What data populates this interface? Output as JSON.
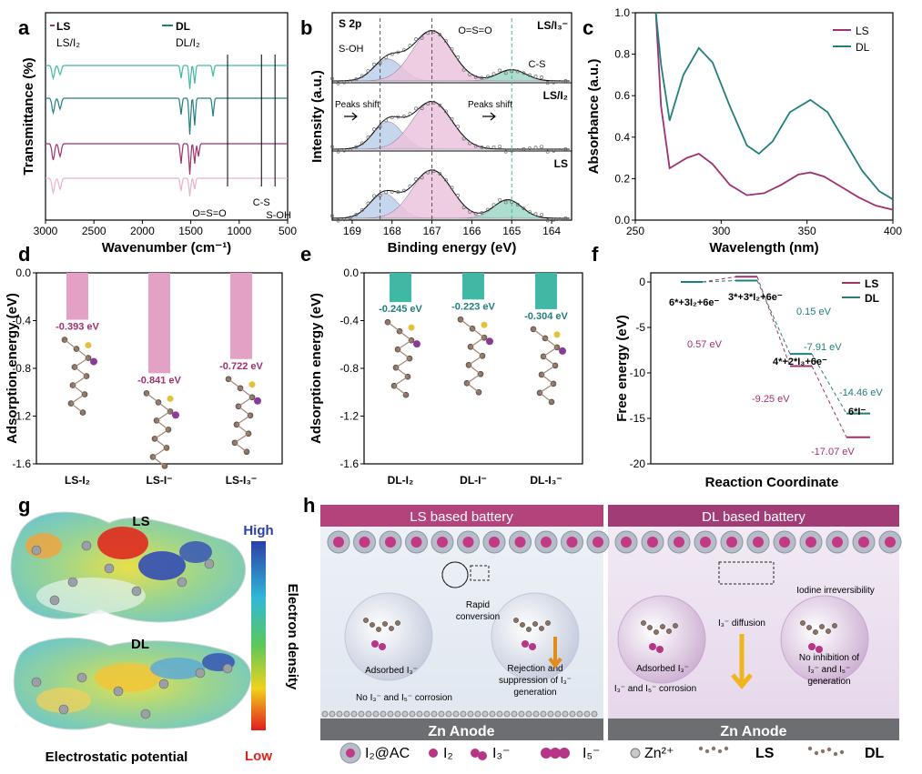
{
  "colors": {
    "ls": "#a0306e",
    "dl": "#217f7b",
    "ls_light": "#e8b2d0",
    "dl_light": "#3fb8a4",
    "pink_fill": "#ecc4dc",
    "blue_fill": "#bcd0ea",
    "green_fill": "#9fd8c6",
    "banner_ls": "#b4437c",
    "banner_dl": "#a23c77"
  },
  "panel_letters": [
    "a",
    "b",
    "c",
    "d",
    "e",
    "f",
    "g",
    "h"
  ],
  "chart_data": [
    {
      "panel": "a",
      "type": "line",
      "xlabel": "Wavenumber (cm⁻¹)",
      "ylabel": "Transmittance (%)",
      "xlim": [
        3000,
        500
      ],
      "xticks": [
        "3000",
        "2500",
        "2000",
        "1500",
        "1000",
        "500"
      ],
      "legend": [
        "LS",
        "DL",
        "LS/I₂",
        "DL/I₂"
      ],
      "series": [
        {
          "name": "DL/I₂",
          "peaks": [
            2920,
            2850,
            1600,
            1510,
            1460,
            1270
          ]
        },
        {
          "name": "DL",
          "peaks": [
            2920,
            2850,
            1600,
            1510,
            1460,
            1270
          ]
        },
        {
          "name": "LS",
          "peaks": [
            2920,
            2850,
            1600,
            1510,
            1460,
            1420
          ]
        },
        {
          "name": "LS/I₂",
          "peaks": [
            2920,
            2850,
            1600,
            1510,
            1460
          ]
        }
      ],
      "annotations": [
        "O=S=O",
        "C-S",
        "S-OH"
      ],
      "annotation_positions": [
        1120,
        770,
        630
      ]
    },
    {
      "panel": "b",
      "type": "line",
      "xlabel": "Binding energy (eV)",
      "ylabel": "Intensity (a.u.)",
      "xlim": [
        169.5,
        163.5
      ],
      "xticks": [
        "169",
        "168",
        "167",
        "166",
        "165",
        "164"
      ],
      "subpanels": [
        {
          "label": "LS/I₃⁻",
          "peaks": [
            {
              "name": "S-OH",
              "center": 168.1
            },
            {
              "name": "O=S=O",
              "center": 167.0
            },
            {
              "name": "C-S",
              "center": 165.0
            }
          ]
        },
        {
          "label": "LS/I₂",
          "peaks": [
            {
              "name": "S-OH",
              "center": 168.1
            },
            {
              "name": "O=S=O",
              "center": 167.0
            }
          ]
        },
        {
          "label": "LS",
          "peaks": [
            {
              "name": "S-OH",
              "center": 168.2
            },
            {
              "name": "O=S=O",
              "center": 167.0
            },
            {
              "name": "C-S",
              "center": 165.1
            }
          ]
        }
      ],
      "texts": [
        "S 2p",
        "S-OH",
        "O=S=O",
        "C-S",
        "Peaks shift",
        "Peaks shift"
      ],
      "dashed_lines": [
        168.3,
        167.0,
        165.0
      ]
    },
    {
      "panel": "c",
      "type": "line",
      "xlabel": "Wavelength (nm)",
      "ylabel": "Absorbance (a.u.)",
      "xlim": [
        250,
        400
      ],
      "ylim": [
        0.0,
        1.0
      ],
      "xticks": [
        "250",
        "300",
        "350",
        "400"
      ],
      "yticks": [
        "0.0",
        "0.2",
        "0.4",
        "0.6",
        "0.8",
        "1.0"
      ],
      "series": [
        {
          "name": "LS",
          "x": [
            262,
            265,
            270,
            280,
            287,
            295,
            305,
            315,
            325,
            335,
            345,
            352,
            360,
            370,
            380,
            390,
            400
          ],
          "y": [
            1.0,
            0.55,
            0.25,
            0.3,
            0.32,
            0.27,
            0.17,
            0.12,
            0.13,
            0.17,
            0.22,
            0.23,
            0.21,
            0.16,
            0.11,
            0.07,
            0.05
          ]
        },
        {
          "name": "DL",
          "x": [
            262,
            265,
            270,
            278,
            287,
            295,
            305,
            315,
            322,
            330,
            340,
            352,
            362,
            372,
            382,
            392,
            400
          ],
          "y": [
            1.0,
            0.75,
            0.48,
            0.7,
            0.83,
            0.76,
            0.55,
            0.36,
            0.32,
            0.38,
            0.52,
            0.58,
            0.52,
            0.38,
            0.24,
            0.14,
            0.1
          ]
        }
      ]
    },
    {
      "panel": "d",
      "type": "bar",
      "ylabel": "Adsorption energy (eV)",
      "ylim": [
        -1.6,
        0.0
      ],
      "yticks": [
        "0.0",
        "-0.4",
        "-0.8",
        "-1.2",
        "-1.6"
      ],
      "categories": [
        "LS-I₂",
        "LS-I⁻",
        "LS-I₃⁻"
      ],
      "values": [
        -0.393,
        -0.841,
        -0.722
      ],
      "value_labels": [
        "-0.393 eV",
        "-0.841 eV",
        "-0.722 eV"
      ]
    },
    {
      "panel": "e",
      "type": "bar",
      "ylabel": "Adsorption energy (eV)",
      "ylim": [
        -1.6,
        0.0
      ],
      "yticks": [
        "0.0",
        "-0.4",
        "-0.8",
        "-1.2",
        "-1.6"
      ],
      "categories": [
        "DL-I₂",
        "DL-I⁻",
        "DL-I₃⁻"
      ],
      "values": [
        -0.245,
        -0.223,
        -0.304
      ],
      "value_labels": [
        "-0.245 eV",
        "-0.223 eV",
        "-0.304 eV"
      ]
    },
    {
      "panel": "f",
      "type": "line",
      "xlabel": "Reaction Coordinate",
      "ylabel": "Free energy (eV)",
      "ylim": [
        -20,
        1
      ],
      "yticks": [
        "0",
        "-5",
        "-10",
        "-15",
        "-20"
      ],
      "legend": [
        "LS",
        "DL"
      ],
      "states": [
        "6*+3I₂+6e⁻",
        "3*+3*I₂+6e⁻",
        "4*+2*I₃+6e⁻",
        "6*I⁻"
      ],
      "series": [
        {
          "name": "LS",
          "values": [
            0,
            0.57,
            -9.25,
            -17.07
          ]
        },
        {
          "name": "DL",
          "values": [
            0,
            0.15,
            -7.91,
            -14.46
          ]
        }
      ],
      "value_labels": [
        "0.15 eV",
        "-7.91 eV",
        "-14.46 eV",
        "0.57 eV",
        "-9.25 eV",
        "-17.07 eV"
      ]
    }
  ],
  "panel_g": {
    "label_ls": "LS",
    "label_dl": "DL",
    "scale_high": "High",
    "scale_low": "Low",
    "scale_title": "Electron density",
    "caption": "Electrostatic potential"
  },
  "panel_h": {
    "ls_banner": "LS based battery",
    "dl_banner": "DL based battery",
    "ls_texts": [
      "Rapid",
      "conversion",
      "Adsorbed I₃⁻",
      "Rejection and",
      "suppression of I₃⁻",
      "generation",
      "No I₃⁻ and I₅⁻ corrosion"
    ],
    "dl_texts": [
      "Iodine irreversibility",
      "I₃⁻ diffusion",
      "Adsorbed I₃⁻",
      "No inhibition of",
      "I₃⁻ and I₅⁻",
      "generation",
      "I₃⁻ and I₅⁻ corrosion"
    ],
    "anode": "Zn Anode",
    "legend": [
      "I₂@AC",
      "I₂",
      "I₃⁻",
      "I₅⁻",
      "Zn²⁺",
      "LS",
      "DL"
    ]
  }
}
